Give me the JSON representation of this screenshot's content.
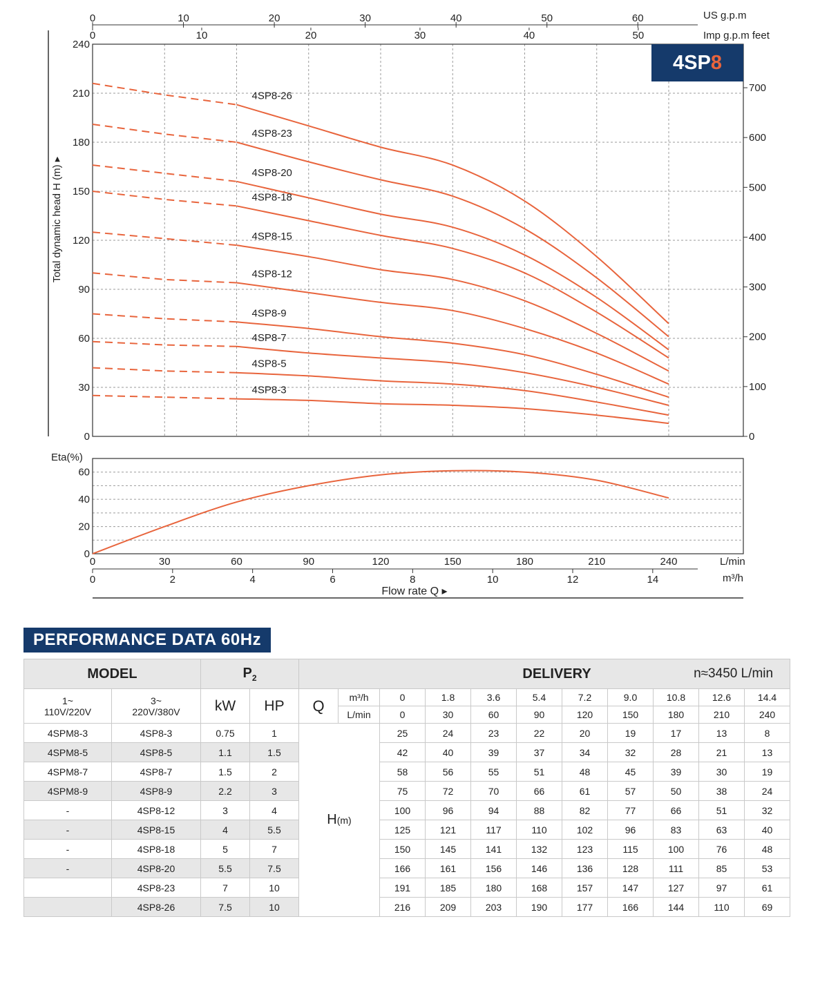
{
  "chart_data": [
    {
      "type": "line",
      "title": "4SP8",
      "ylabel": "Total dynamic head H (m)",
      "ylim": [
        0,
        240
      ],
      "yticks": [
        0,
        30,
        60,
        90,
        120,
        150,
        180,
        210,
        240
      ],
      "y2_label": "feet",
      "y2_ticks": [
        0,
        100,
        200,
        300,
        400,
        500,
        600,
        700
      ],
      "x_unit_lmin": "L/min",
      "x_unit_m3h": "m³/h",
      "x_unit_usgpm": "US g.p.m",
      "x_unit_impgpm": "Imp g.p.m",
      "xlabel": "Flow rate",
      "xlabel_symbol": "Q",
      "xlim": [
        0,
        240
      ],
      "xticks_lmin": [
        0,
        30,
        60,
        90,
        120,
        150,
        180,
        210,
        240
      ],
      "xticks_m3h": [
        0,
        2,
        4,
        6,
        8,
        10,
        12,
        14
      ],
      "xticks_usgpm": [
        0,
        10,
        20,
        30,
        40,
        50,
        60
      ],
      "xticks_impgpm": [
        0,
        10,
        20,
        30,
        40,
        50
      ],
      "grid": true,
      "x": [
        0,
        30,
        60,
        90,
        120,
        150,
        180,
        210,
        240
      ],
      "dashed_up_to_lmin": 60,
      "series": [
        {
          "name": "4SP8-26",
          "values": [
            216,
            209,
            203,
            190,
            177,
            166,
            144,
            110,
            69
          ]
        },
        {
          "name": "4SP8-23",
          "values": [
            191,
            185,
            180,
            168,
            157,
            147,
            127,
            97,
            61
          ]
        },
        {
          "name": "4SP8-20",
          "values": [
            166,
            161,
            156,
            146,
            136,
            128,
            111,
            85,
            53
          ]
        },
        {
          "name": "4SP8-18",
          "values": [
            150,
            145,
            141,
            132,
            123,
            115,
            100,
            76,
            48
          ]
        },
        {
          "name": "4SP8-15",
          "values": [
            125,
            121,
            117,
            110,
            102,
            96,
            83,
            63,
            40
          ]
        },
        {
          "name": "4SP8-12",
          "values": [
            100,
            96,
            94,
            88,
            82,
            77,
            66,
            51,
            32
          ]
        },
        {
          "name": "4SP8-9",
          "values": [
            75,
            72,
            70,
            66,
            61,
            57,
            50,
            38,
            24
          ]
        },
        {
          "name": "4SP8-7",
          "values": [
            58,
            56,
            55,
            51,
            48,
            45,
            39,
            30,
            19
          ]
        },
        {
          "name": "4SP8-5",
          "values": [
            42,
            40,
            39,
            37,
            34,
            32,
            28,
            21,
            13
          ]
        },
        {
          "name": "4SP8-3",
          "values": [
            25,
            24,
            23,
            22,
            20,
            19,
            17,
            13,
            8
          ]
        }
      ]
    },
    {
      "type": "line",
      "ylabel": "Eta(%)",
      "ylim": [
        0,
        70
      ],
      "yticks": [
        0,
        20,
        40,
        60
      ],
      "xlim": [
        0,
        240
      ],
      "grid": true,
      "x": [
        0,
        30,
        60,
        90,
        120,
        150,
        180,
        210,
        240
      ],
      "series": [
        {
          "values": [
            0,
            20,
            38,
            50,
            58,
            61,
            60,
            54,
            41
          ]
        }
      ]
    }
  ],
  "badge": {
    "prefix": "4SP",
    "accent": "8"
  },
  "colors": {
    "curve": "#e8643c",
    "brand": "#153a6b",
    "accent": "#e8643c",
    "header_bg": "#e7e7e7"
  },
  "performance": {
    "title": "PERFORMANCE DATA 60Hz",
    "headers": {
      "model": "MODEL",
      "p2": "P",
      "p2_sub": "2",
      "delivery": "DELIVERY",
      "speed": "n≈3450 L/min",
      "single_phase_l1": "1~",
      "single_phase_l2": "110V/220V",
      "three_phase_l1": "3~",
      "three_phase_l2": "220V/380V",
      "kw": "kW",
      "hp": "HP",
      "q": "Q",
      "unit_m3h": "m³/h",
      "unit_lmin": "L/min",
      "h": "H",
      "h_unit": "(m)"
    },
    "flow_m3h": [
      "0",
      "1.8",
      "3.6",
      "5.4",
      "7.2",
      "9.0",
      "10.8",
      "12.6",
      "14.4"
    ],
    "flow_lmin": [
      "0",
      "30",
      "60",
      "90",
      "120",
      "150",
      "180",
      "210",
      "240"
    ],
    "rows": [
      {
        "single": "4SPM8-3",
        "three": "4SP8-3",
        "kw": "0.75",
        "hp": "1",
        "h": [
          "25",
          "24",
          "23",
          "22",
          "20",
          "19",
          "17",
          "13",
          "8"
        ]
      },
      {
        "single": "4SPM8-5",
        "three": "4SP8-5",
        "kw": "1.1",
        "hp": "1.5",
        "h": [
          "42",
          "40",
          "39",
          "37",
          "34",
          "32",
          "28",
          "21",
          "13"
        ]
      },
      {
        "single": "4SPM8-7",
        "three": "4SP8-7",
        "kw": "1.5",
        "hp": "2",
        "h": [
          "58",
          "56",
          "55",
          "51",
          "48",
          "45",
          "39",
          "30",
          "19"
        ]
      },
      {
        "single": "4SPM8-9",
        "three": "4SP8-9",
        "kw": "2.2",
        "hp": "3",
        "h": [
          "75",
          "72",
          "70",
          "66",
          "61",
          "57",
          "50",
          "38",
          "24"
        ]
      },
      {
        "single": "-",
        "three": "4SP8-12",
        "kw": "3",
        "hp": "4",
        "h": [
          "100",
          "96",
          "94",
          "88",
          "82",
          "77",
          "66",
          "51",
          "32"
        ]
      },
      {
        "single": "-",
        "three": "4SP8-15",
        "kw": "4",
        "hp": "5.5",
        "h": [
          "125",
          "121",
          "117",
          "110",
          "102",
          "96",
          "83",
          "63",
          "40"
        ]
      },
      {
        "single": "-",
        "three": "4SP8-18",
        "kw": "5",
        "hp": "7",
        "h": [
          "150",
          "145",
          "141",
          "132",
          "123",
          "115",
          "100",
          "76",
          "48"
        ]
      },
      {
        "single": "-",
        "three": "4SP8-20",
        "kw": "5.5",
        "hp": "7.5",
        "h": [
          "166",
          "161",
          "156",
          "146",
          "136",
          "128",
          "111",
          "85",
          "53"
        ]
      },
      {
        "single": "",
        "three": "4SP8-23",
        "kw": "7",
        "hp": "10",
        "h": [
          "191",
          "185",
          "180",
          "168",
          "157",
          "147",
          "127",
          "97",
          "61"
        ]
      },
      {
        "single": "",
        "three": "4SP8-26",
        "kw": "7.5",
        "hp": "10",
        "h": [
          "216",
          "209",
          "203",
          "190",
          "177",
          "166",
          "144",
          "110",
          "69"
        ]
      }
    ]
  }
}
